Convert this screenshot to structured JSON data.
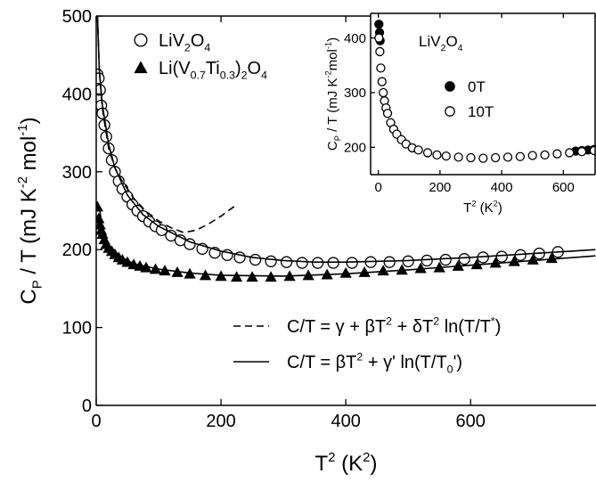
{
  "chart_data": [
    {
      "type": "scatter",
      "x_label": [
        {
          "text": "T"
        },
        {
          "text": "2",
          "shift": "sup"
        },
        {
          "text": " (K"
        },
        {
          "text": "2",
          "shift": "sup"
        },
        {
          "text": ")"
        }
      ],
      "y_label": [
        {
          "text": "C"
        },
        {
          "text": "P",
          "shift": "sub"
        },
        {
          "text": " / T (mJ K"
        },
        {
          "text": "-2",
          "shift": "sup"
        },
        {
          "text": " mol"
        },
        {
          "text": "-1",
          "shift": "sup"
        },
        {
          "text": ")"
        }
      ],
      "xlim": [
        0,
        801
      ],
      "ylim": [
        0,
        500
      ],
      "xticks": [
        0,
        200,
        400,
        600
      ],
      "yticks": [
        0,
        100,
        200,
        300,
        400,
        500
      ],
      "series": [
        {
          "name": [
            {
              "text": "LiV"
            },
            {
              "text": "2",
              "shift": "sub"
            },
            {
              "text": "O"
            },
            {
              "text": "4",
              "shift": "sub"
            }
          ],
          "marker": "open-circle",
          "color": "#000000",
          "x": [
            2,
            4,
            6,
            8,
            10,
            13,
            16,
            20,
            25,
            30,
            36,
            42,
            50,
            58,
            66,
            75,
            85,
            95,
            105,
            120,
            135,
            150,
            170,
            190,
            210,
            230,
            255,
            280,
            305,
            330,
            355,
            380,
            410,
            440,
            470,
            500,
            530,
            560,
            590,
            620,
            650,
            680,
            710,
            740
          ],
          "values": [
            425,
            420,
            405,
            385,
            375,
            360,
            345,
            330,
            315,
            300,
            288,
            278,
            268,
            258,
            250,
            243,
            236,
            230,
            225,
            218,
            212,
            207,
            201,
            196,
            193,
            190,
            187,
            185,
            184,
            183,
            183,
            183,
            183,
            184,
            184,
            185,
            186,
            187,
            188,
            190,
            191,
            193,
            195,
            197
          ]
        },
        {
          "name": [
            {
              "text": "Li(V"
            },
            {
              "text": "0.7",
              "shift": "sub"
            },
            {
              "text": "Ti"
            },
            {
              "text": "0.3",
              "shift": "sub"
            },
            {
              "text": ")"
            },
            {
              "text": "2",
              "shift": "sub"
            },
            {
              "text": "O"
            },
            {
              "text": "4",
              "shift": "sub"
            }
          ],
          "marker": "triangle",
          "color": "#000000",
          "x": [
            2,
            4,
            6,
            8,
            10,
            13,
            16,
            20,
            25,
            30,
            36,
            42,
            50,
            60,
            70,
            80,
            95,
            110,
            130,
            150,
            175,
            200,
            225,
            250,
            280,
            310,
            340,
            370,
            400,
            430,
            460,
            490,
            520,
            550,
            580,
            610,
            640,
            670,
            700,
            730
          ],
          "values": [
            255,
            240,
            232,
            225,
            220,
            213,
            207,
            202,
            198,
            194,
            190,
            187,
            184,
            181,
            179,
            177,
            175,
            173,
            171,
            169,
            167,
            166,
            165,
            165,
            165,
            166,
            167,
            168,
            170,
            171,
            173,
            174,
            176,
            177,
            179,
            181,
            183,
            185,
            187,
            189
          ]
        },
        {
          "name": [
            {
              "text": "C/T = γ + βT"
            },
            {
              "text": "2",
              "shift": "sup"
            },
            {
              "text": " + δT"
            },
            {
              "text": "2",
              "shift": "sup"
            },
            {
              "text": " ln(T/T"
            },
            {
              "text": "*",
              "shift": "sup"
            },
            {
              "text": ")"
            }
          ],
          "marker": "line",
          "dash": "dashed",
          "color": "#000000",
          "x": [
            2,
            5,
            10,
            20,
            30,
            40,
            60,
            80,
            100,
            120,
            140,
            160,
            180,
            200,
            222
          ],
          "values": [
            500,
            430,
            380,
            330,
            305,
            290,
            266,
            249,
            237,
            228,
            222,
            225,
            233,
            243,
            256
          ]
        },
        {
          "name": [
            {
              "text": "C/T = βT"
            },
            {
              "text": "2",
              "shift": "sup"
            },
            {
              "text": " + γ' ln(T/T"
            },
            {
              "text": "0",
              "shift": "sub"
            },
            {
              "text": "')"
            }
          ],
          "marker": "line",
          "dash": "solid",
          "color": "#000000",
          "x": [
            2,
            5,
            10,
            20,
            30,
            50,
            75,
            100,
            150,
            200,
            250,
            300,
            350,
            400,
            500,
            600,
            700,
            800
          ],
          "values": [
            500,
            430,
            385,
            335,
            305,
            270,
            245,
            230,
            210,
            198,
            190,
            186,
            184,
            184,
            186,
            190,
            195,
            200
          ]
        },
        {
          "marker": "line",
          "dash": "solid",
          "color": "#000000",
          "x": [
            5,
            10,
            20,
            40,
            60,
            100,
            150,
            200,
            300,
            400,
            500,
            600,
            700,
            800
          ],
          "values": [
            255,
            225,
            205,
            190,
            182,
            175,
            170,
            167,
            166,
            169,
            174,
            180,
            186,
            192
          ]
        }
      ]
    },
    {
      "type": "scatter",
      "annotation": [
        {
          "text": "LiV"
        },
        {
          "text": "2",
          "shift": "sub"
        },
        {
          "text": "O"
        },
        {
          "text": "4",
          "shift": "sub"
        }
      ],
      "x_label": [
        {
          "text": "T"
        },
        {
          "text": "2",
          "shift": "sup"
        },
        {
          "text": " (K"
        },
        {
          "text": "2",
          "shift": "sup"
        },
        {
          "text": ")"
        }
      ],
      "y_label": [
        {
          "text": "C"
        },
        {
          "text": "P",
          "shift": "sub"
        },
        {
          "text": " / T (mJ K"
        },
        {
          "text": "-2",
          "shift": "sup"
        },
        {
          "text": "mol"
        },
        {
          "text": "-1",
          "shift": "sup"
        },
        {
          "text": ")"
        }
      ],
      "xlim": [
        -25,
        703
      ],
      "ylim": [
        150,
        445
      ],
      "xticks": [
        0,
        200,
        400,
        600
      ],
      "yticks": [
        200,
        300,
        400
      ],
      "series": [
        {
          "name": [
            {
              "text": "0T"
            }
          ],
          "marker": "filled-circle",
          "color": "#000000",
          "x": [
            2,
            4,
            6,
            640,
            660,
            680,
            700
          ],
          "values": [
            425,
            410,
            395,
            193,
            194,
            195,
            196
          ]
        },
        {
          "name": [
            {
              "text": "10T"
            }
          ],
          "marker": "open-circle",
          "color": "#000000",
          "x": [
            2,
            5,
            8,
            12,
            16,
            20,
            25,
            30,
            40,
            50,
            60,
            75,
            90,
            110,
            130,
            160,
            190,
            220,
            260,
            300,
            340,
            380,
            420,
            460,
            500,
            540,
            580,
            620,
            660,
            700
          ],
          "values": [
            400,
            375,
            345,
            320,
            300,
            285,
            272,
            262,
            245,
            233,
            224,
            214,
            206,
            199,
            195,
            190,
            186,
            184,
            182,
            181,
            180,
            181,
            182,
            183,
            185,
            186,
            188,
            190,
            192,
            194
          ]
        }
      ]
    }
  ]
}
